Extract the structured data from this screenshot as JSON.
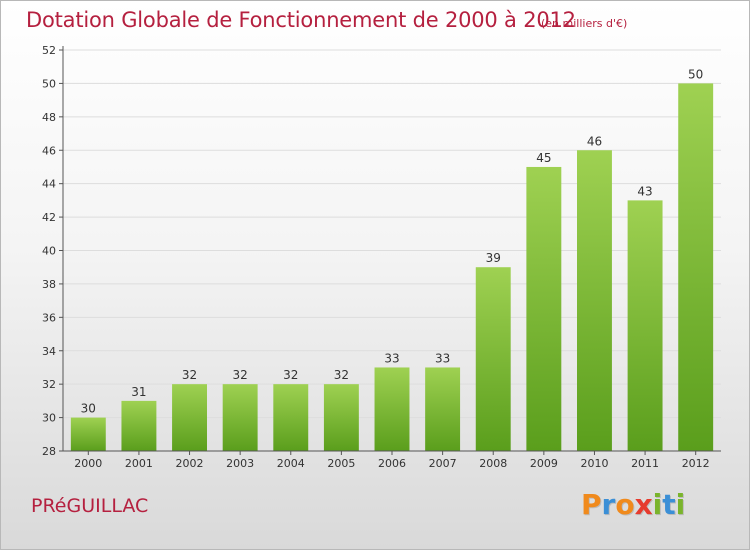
{
  "header": {
    "title": "Dotation Globale de Fonctionnement de 2000 à 2012",
    "subtitle": "(en milliers d'€)"
  },
  "footer": {
    "commune": "PRéGUILLAC",
    "logo_text": "Proxiti",
    "logo_colors": [
      "#f08a1c",
      "#3b8fd6",
      "#f08a1c",
      "#e63b2e",
      "#7ab42c",
      "#3b8fd6",
      "#7ab42c"
    ]
  },
  "colors": {
    "title": "#b5203f",
    "bar_top": "#9fd152",
    "bar_bottom": "#5a9e1c",
    "axis": "#555555",
    "grid": "#dddddd"
  },
  "chart_data": {
    "type": "bar",
    "categories": [
      "2000",
      "2001",
      "2002",
      "2003",
      "2004",
      "2005",
      "2006",
      "2007",
      "2008",
      "2009",
      "2010",
      "2011",
      "2012"
    ],
    "values": [
      30,
      31,
      32,
      32,
      32,
      32,
      33,
      33,
      39,
      45,
      46,
      43,
      50
    ],
    "ylim": [
      28,
      52
    ],
    "yticks": [
      28,
      30,
      32,
      34,
      36,
      38,
      40,
      42,
      44,
      46,
      48,
      50,
      52
    ],
    "grid": true,
    "data_labels": true
  }
}
